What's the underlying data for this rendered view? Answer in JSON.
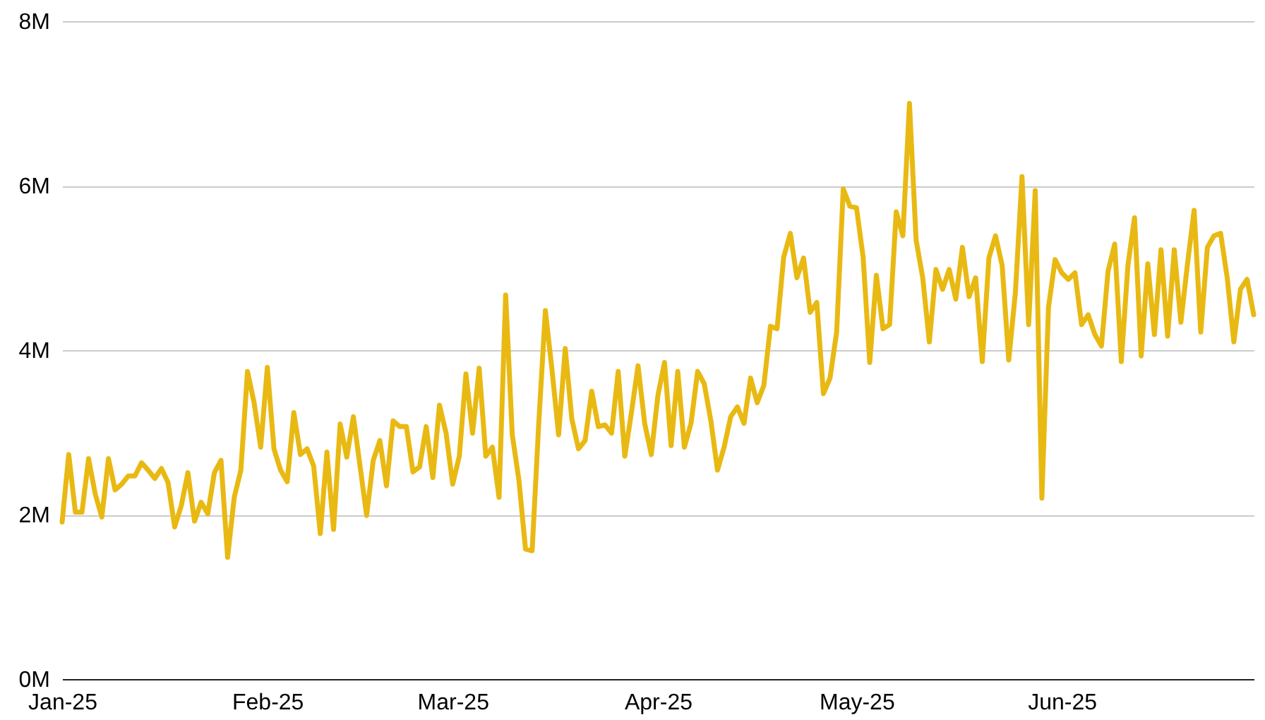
{
  "chart_data": {
    "type": "line",
    "grid": "y",
    "line_style": "solid",
    "xlim": [
      "2025-01-01",
      "2025-06-30"
    ],
    "xticks": [
      {
        "value": "2025-01-01",
        "label": "Jan-25"
      },
      {
        "value": "2025-02-01",
        "label": "Feb-25"
      },
      {
        "value": "2025-03-01",
        "label": "Mar-25"
      },
      {
        "value": "2025-04-01",
        "label": "Apr-25"
      },
      {
        "value": "2025-05-01",
        "label": "May-25"
      },
      {
        "value": "2025-06-01",
        "label": "Jun-25"
      }
    ],
    "ylim": [
      0,
      8
    ],
    "yticks": [
      {
        "value": 0,
        "label": "0M"
      },
      {
        "value": 2,
        "label": "2M"
      },
      {
        "value": 4,
        "label": "4M"
      },
      {
        "value": 6,
        "label": "6M"
      },
      {
        "value": 8,
        "label": "8M"
      }
    ],
    "x": [
      "2025-01-01",
      "2025-01-02",
      "2025-01-03",
      "2025-01-04",
      "2025-01-05",
      "2025-01-06",
      "2025-01-07",
      "2025-01-08",
      "2025-01-09",
      "2025-01-10",
      "2025-01-11",
      "2025-01-12",
      "2025-01-13",
      "2025-01-14",
      "2025-01-15",
      "2025-01-16",
      "2025-01-17",
      "2025-01-18",
      "2025-01-19",
      "2025-01-20",
      "2025-01-21",
      "2025-01-22",
      "2025-01-23",
      "2025-01-24",
      "2025-01-25",
      "2025-01-26",
      "2025-01-27",
      "2025-01-28",
      "2025-01-29",
      "2025-01-30",
      "2025-01-31",
      "2025-02-01",
      "2025-02-02",
      "2025-02-03",
      "2025-02-04",
      "2025-02-05",
      "2025-02-06",
      "2025-02-07",
      "2025-02-08",
      "2025-02-09",
      "2025-02-10",
      "2025-02-11",
      "2025-02-12",
      "2025-02-13",
      "2025-02-14",
      "2025-02-16",
      "2025-02-17",
      "2025-02-18",
      "2025-02-19",
      "2025-02-20",
      "2025-02-21",
      "2025-02-22",
      "2025-02-23",
      "2025-02-24",
      "2025-02-25",
      "2025-02-26",
      "2025-02-27",
      "2025-02-28",
      "2025-03-01",
      "2025-03-02",
      "2025-03-03",
      "2025-03-04",
      "2025-03-05",
      "2025-03-06",
      "2025-03-07",
      "2025-03-08",
      "2025-03-09",
      "2025-03-10",
      "2025-03-11",
      "2025-03-12",
      "2025-03-13",
      "2025-03-14",
      "2025-03-15",
      "2025-03-16",
      "2025-03-17",
      "2025-03-18",
      "2025-03-19",
      "2025-03-20",
      "2025-03-21",
      "2025-03-22",
      "2025-03-23",
      "2025-03-24",
      "2025-03-25",
      "2025-03-26",
      "2025-03-27",
      "2025-03-28",
      "2025-03-29",
      "2025-03-30",
      "2025-03-31",
      "2025-04-01",
      "2025-04-02",
      "2025-04-03",
      "2025-04-04",
      "2025-04-05",
      "2025-04-06",
      "2025-04-07",
      "2025-04-08",
      "2025-04-09",
      "2025-04-10",
      "2025-04-11",
      "2025-04-12",
      "2025-04-13",
      "2025-04-14",
      "2025-04-15",
      "2025-04-16",
      "2025-04-17",
      "2025-04-18",
      "2025-04-19",
      "2025-04-20",
      "2025-04-21",
      "2025-04-22",
      "2025-04-23",
      "2025-04-24",
      "2025-04-25",
      "2025-04-26",
      "2025-04-27",
      "2025-04-28",
      "2025-04-29",
      "2025-04-30",
      "2025-05-01",
      "2025-05-02",
      "2025-05-03",
      "2025-05-04",
      "2025-05-05",
      "2025-05-06",
      "2025-05-07",
      "2025-05-08",
      "2025-05-09",
      "2025-05-10",
      "2025-05-11",
      "2025-05-12",
      "2025-05-13",
      "2025-05-14",
      "2025-05-15",
      "2025-05-16",
      "2025-05-17",
      "2025-05-18",
      "2025-05-19",
      "2025-05-20",
      "2025-05-21",
      "2025-05-22",
      "2025-05-23",
      "2025-05-24",
      "2025-05-25",
      "2025-05-26",
      "2025-05-27",
      "2025-05-28",
      "2025-05-29",
      "2025-05-30",
      "2025-05-31",
      "2025-06-01",
      "2025-06-02",
      "2025-06-03",
      "2025-06-04",
      "2025-06-05",
      "2025-06-06",
      "2025-06-07",
      "2025-06-08",
      "2025-06-09",
      "2025-06-10",
      "2025-06-11",
      "2025-06-12",
      "2025-06-13",
      "2025-06-14",
      "2025-06-15",
      "2025-06-16",
      "2025-06-17",
      "2025-06-18",
      "2025-06-19",
      "2025-06-20",
      "2025-06-21",
      "2025-06-22",
      "2025-06-23",
      "2025-06-24",
      "2025-06-25",
      "2025-06-26",
      "2025-06-27",
      "2025-06-28",
      "2025-06-29",
      "2025-06-30"
    ],
    "series": [
      {
        "color": "#e9b913",
        "values": [
          1.91,
          2.73,
          2.03,
          2.03,
          2.68,
          2.25,
          1.97,
          2.68,
          2.3,
          2.37,
          2.47,
          2.47,
          2.63,
          2.54,
          2.44,
          2.56,
          2.39,
          1.85,
          2.11,
          2.51,
          1.92,
          2.15,
          2.01,
          2.51,
          2.66,
          1.48,
          2.21,
          2.54,
          3.74,
          3.36,
          2.82,
          3.79,
          2.8,
          2.54,
          2.4,
          3.24,
          2.73,
          2.8,
          2.59,
          1.77,
          2.76,
          1.82,
          3.1,
          2.7,
          3.19,
          1.99,
          2.66,
          2.9,
          2.35,
          3.14,
          3.07,
          3.07,
          2.52,
          2.58,
          3.07,
          2.45,
          3.33,
          2.99,
          2.37,
          2.71,
          3.71,
          2.99,
          3.78,
          2.71,
          2.82,
          2.21,
          4.67,
          2.97,
          2.42,
          1.58,
          1.56,
          3.11,
          4.48,
          3.76,
          2.97,
          4.02,
          3.16,
          2.8,
          2.9,
          3.5,
          3.07,
          3.09,
          2.99,
          3.74,
          2.71,
          3.24,
          3.81,
          3.11,
          2.73,
          3.45,
          3.85,
          2.84,
          3.74,
          2.82,
          3.11,
          3.74,
          3.59,
          3.14,
          2.54,
          2.82,
          3.19,
          3.31,
          3.11,
          3.66,
          3.36,
          3.57,
          4.29,
          4.26,
          5.13,
          5.42,
          4.88,
          5.12,
          4.46,
          4.58,
          3.47,
          3.66,
          4.22,
          5.96,
          5.75,
          5.73,
          5.13,
          3.85,
          4.91,
          4.26,
          4.31,
          5.68,
          5.39,
          7.0,
          5.34,
          4.88,
          4.1,
          4.98,
          4.74,
          4.98,
          4.62,
          5.25,
          4.65,
          4.88,
          3.86,
          5.12,
          5.39,
          5.03,
          3.88,
          4.7,
          6.11,
          4.31,
          5.94,
          2.2,
          4.52,
          5.1,
          4.94,
          4.86,
          4.94,
          4.31,
          4.43,
          4.19,
          4.05,
          4.96,
          5.29,
          3.86,
          5.03,
          5.61,
          3.93,
          5.05,
          4.19,
          5.22,
          4.17,
          5.22,
          4.34,
          5.05,
          5.7,
          4.22,
          5.25,
          5.39,
          5.42,
          4.88,
          4.1,
          4.74,
          4.86,
          4.43
        ]
      }
    ]
  }
}
